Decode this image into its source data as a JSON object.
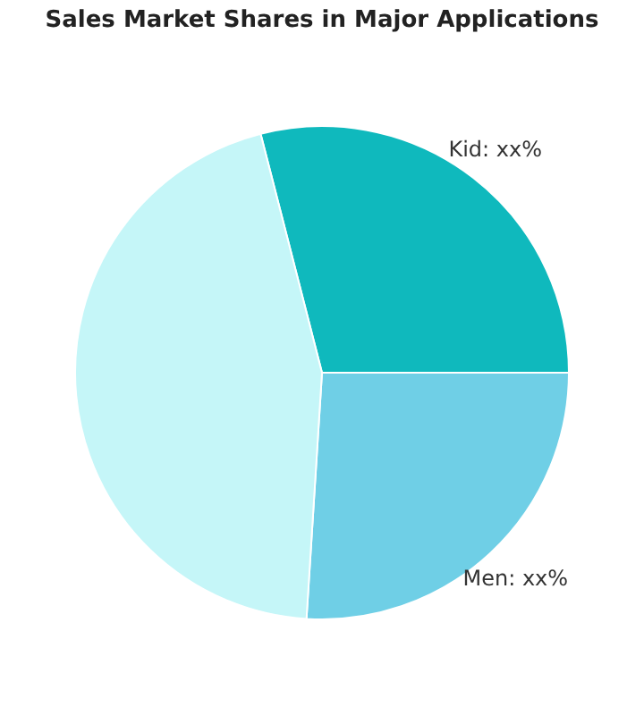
{
  "chart_data": {
    "type": "pie",
    "title": "Sales Market Shares in Major Applications",
    "categories": [
      "Kid",
      "Men",
      null
    ],
    "values": [
      29,
      26,
      45
    ],
    "colors": [
      "#0fb9bd",
      "#6fcfe6",
      "#c5f6f8"
    ],
    "value_labels": [
      "xx%",
      "xx%",
      null
    ],
    "legend": false
  }
}
